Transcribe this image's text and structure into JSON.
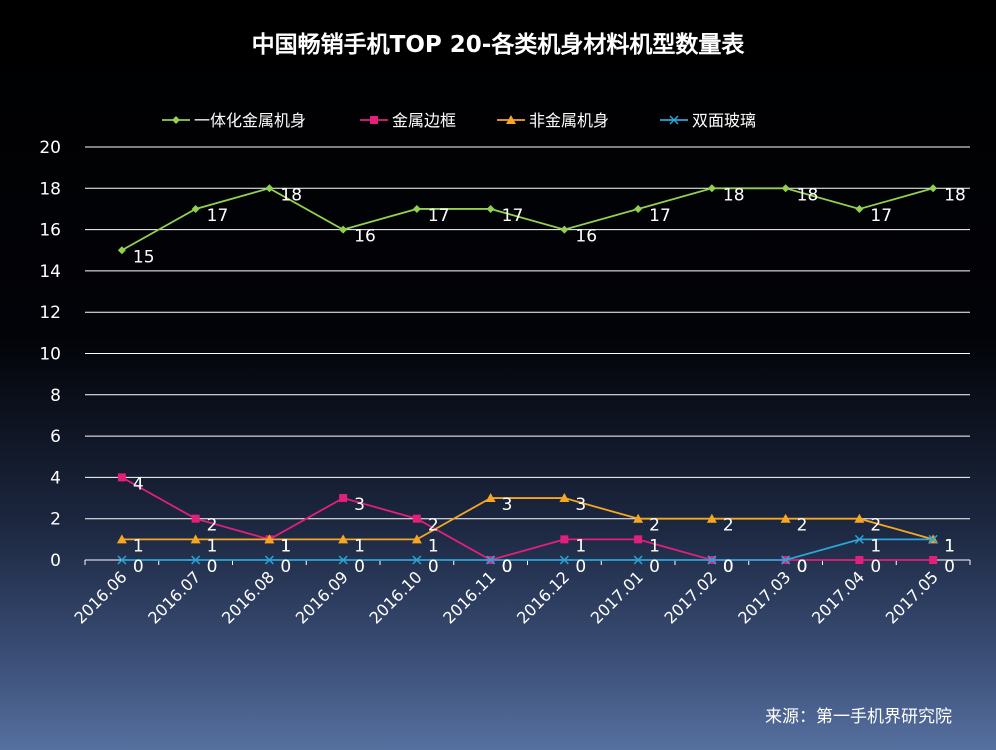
{
  "chart_data": {
    "type": "line",
    "title": "中国畅销手机TOP 20-各类机身材料机型数量表",
    "categories": [
      "2016.06",
      "2016.07",
      "2016.08",
      "2016.09",
      "2016.10",
      "2016.11",
      "2016.12",
      "2017.01",
      "2017.02",
      "2017.03",
      "2017.04",
      "2017.05"
    ],
    "ylim": [
      0,
      20
    ],
    "yticks": [
      0,
      2,
      4,
      6,
      8,
      10,
      12,
      14,
      16,
      18,
      20
    ],
    "grid": true,
    "legend_position": "top",
    "series": [
      {
        "name": "一体化金属机身",
        "color": "#92d050",
        "marker": "diamond",
        "values": [
          15,
          17,
          18,
          16,
          17,
          17,
          16,
          17,
          18,
          18,
          17,
          18
        ]
      },
      {
        "name": "金属边框",
        "color": "#e0207a",
        "marker": "square",
        "values": [
          4,
          2,
          1,
          3,
          2,
          0,
          1,
          1,
          0,
          0,
          0,
          0
        ]
      },
      {
        "name": "非金属机身",
        "color": "#f5a623",
        "marker": "triangle",
        "values": [
          1,
          1,
          1,
          1,
          1,
          3,
          3,
          2,
          2,
          2,
          2,
          1
        ]
      },
      {
        "name": "双面玻璃",
        "color": "#2aa6d8",
        "marker": "x",
        "values": [
          0,
          0,
          0,
          0,
          0,
          0,
          0,
          0,
          0,
          0,
          1,
          1
        ]
      }
    ]
  },
  "source": "来源：第一手机界研究院"
}
